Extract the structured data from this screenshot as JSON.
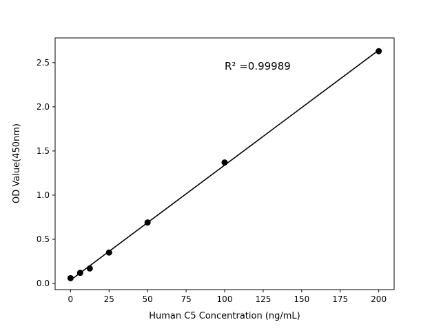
{
  "chart_data": {
    "type": "scatter",
    "x": [
      0,
      6.25,
      12.5,
      25,
      50,
      100,
      200
    ],
    "y": [
      0.06,
      0.12,
      0.17,
      0.35,
      0.69,
      1.37,
      2.63
    ],
    "line": true,
    "title": "",
    "xlabel": "Human C5 Concentration (ng/mL)",
    "ylabel": "OD Value(450nm)",
    "xlim": [
      -10,
      210
    ],
    "ylim": [
      -0.07,
      2.78
    ],
    "xticks": [
      0,
      25,
      50,
      75,
      100,
      125,
      150,
      175,
      200
    ],
    "yticks": [
      0.0,
      0.5,
      1.0,
      1.5,
      2.0,
      2.5
    ],
    "annotation": {
      "text": "R² =0.99989",
      "x": 100,
      "y": 2.42
    },
    "legend": null,
    "grid": false,
    "colors": {
      "line": "#000000",
      "marker": "#000000",
      "axis": "#000000",
      "background": "#ffffff"
    }
  }
}
